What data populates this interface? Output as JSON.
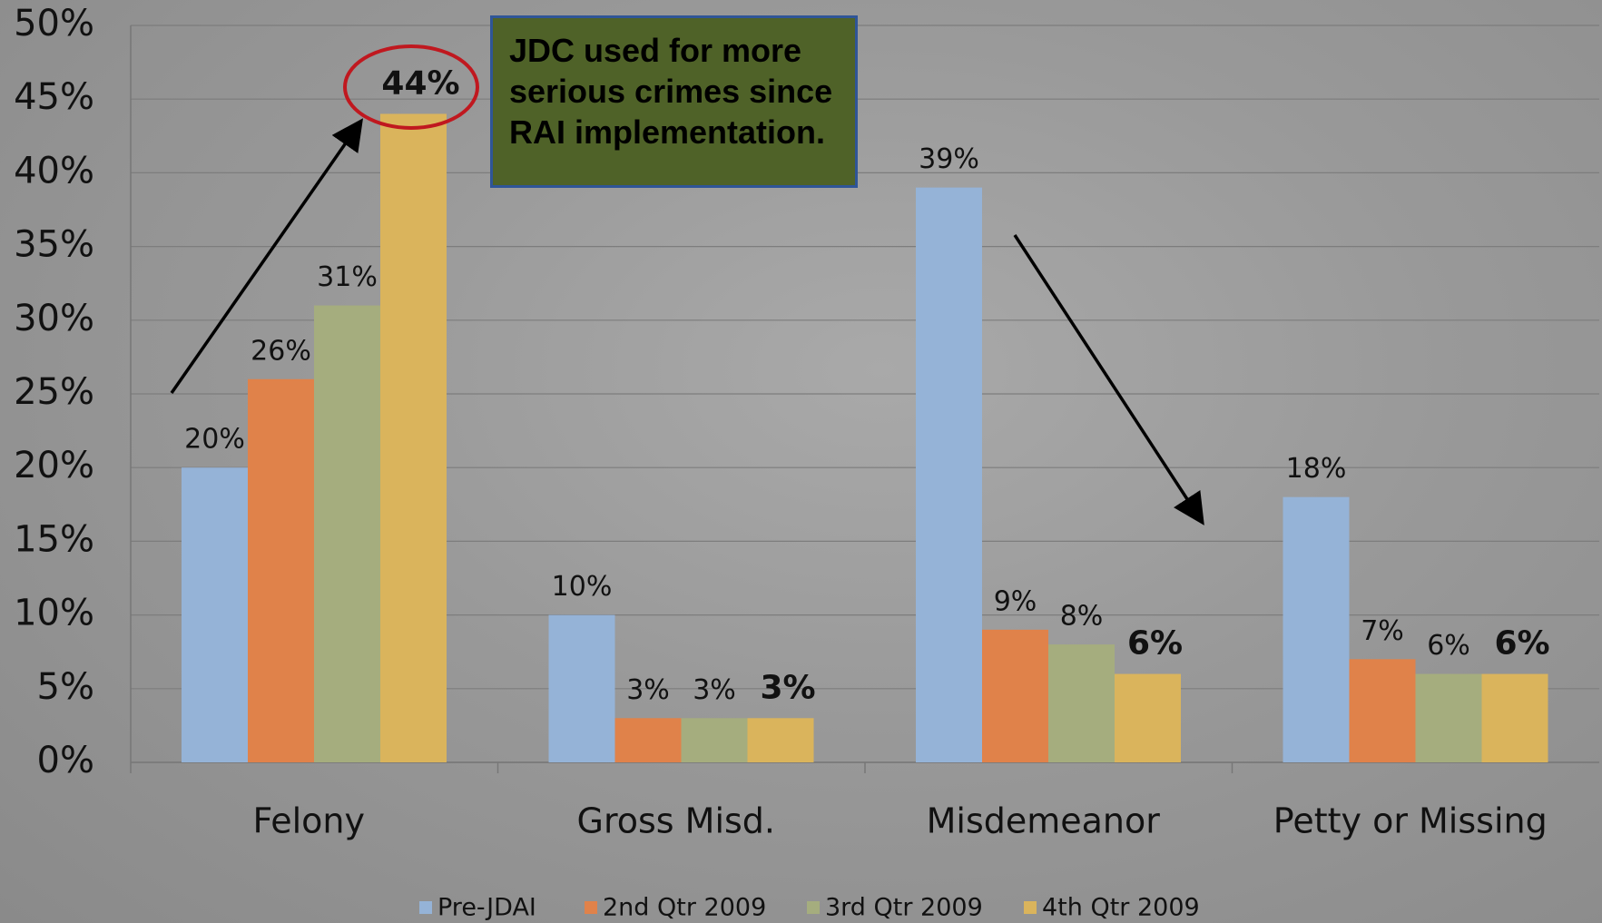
{
  "chart_data": {
    "type": "bar",
    "categories": [
      "Felony",
      "Gross Misd.",
      "Misdemeanor",
      "Petty or Missing"
    ],
    "series": [
      {
        "name": "Pre-JDAI",
        "color": "#95b3d7",
        "values": [
          20,
          10,
          39,
          18
        ],
        "value_labels": [
          "20%",
          "10%",
          "39%",
          "18%"
        ]
      },
      {
        "name": "2nd Qtr 2009",
        "color": "#e0824a",
        "values": [
          26,
          3,
          9,
          7
        ],
        "value_labels": [
          "26%",
          "3%",
          "9%",
          "7%"
        ]
      },
      {
        "name": "3rd Qtr 2009",
        "color": "#a5ad7e",
        "values": [
          31,
          3,
          8,
          6
        ],
        "value_labels": [
          "31%",
          "3%",
          "8%",
          "6%"
        ]
      },
      {
        "name": "4th Qtr 2009",
        "color": "#dab45c",
        "values": [
          44,
          3,
          6,
          6
        ],
        "value_labels": [
          "44%",
          "3%",
          "6%",
          "6%"
        ]
      }
    ],
    "ylim": [
      0,
      50
    ],
    "yticks": [
      {
        "value": 0,
        "label": "0%"
      },
      {
        "value": 5,
        "label": "5%"
      },
      {
        "value": 10,
        "label": "10%"
      },
      {
        "value": 15,
        "label": "15%"
      },
      {
        "value": 20,
        "label": "20%"
      },
      {
        "value": 25,
        "label": "25%"
      },
      {
        "value": 30,
        "label": "30%"
      },
      {
        "value": 35,
        "label": "35%"
      },
      {
        "value": 40,
        "label": "40%"
      },
      {
        "value": 45,
        "label": "45%"
      },
      {
        "value": 50,
        "label": "50%"
      }
    ],
    "grid": true,
    "legend": "bottom",
    "annotation": "JDC used for more serious crimes since RAI implementation."
  }
}
